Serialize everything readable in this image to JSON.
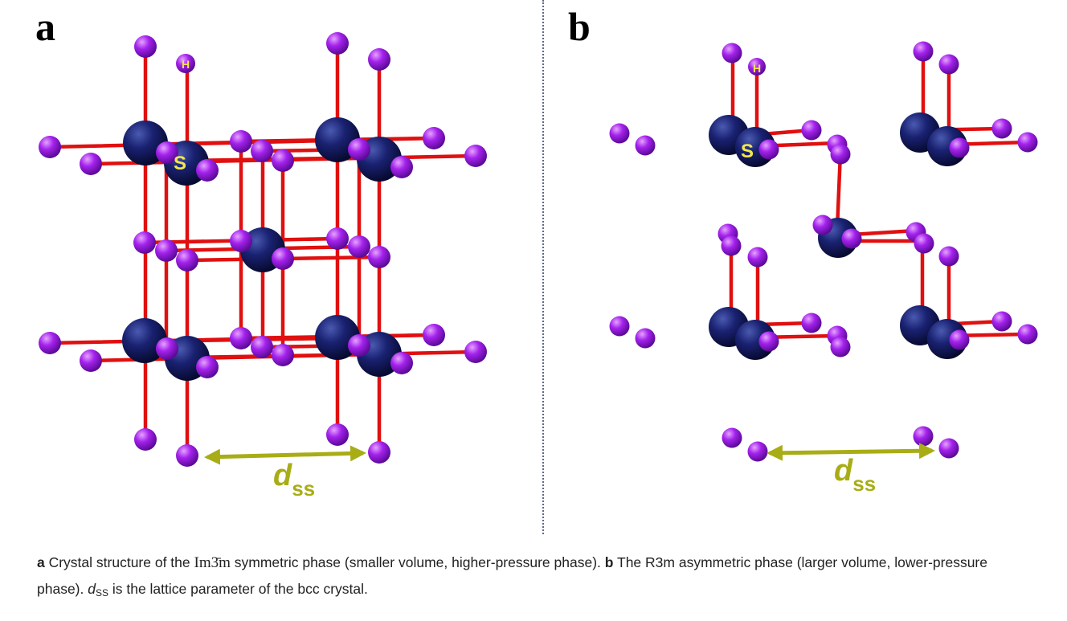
{
  "figure": {
    "panel_a_label": "a",
    "panel_b_label": "b",
    "atom_label_h": "H",
    "atom_label_s": "S",
    "dim_label": {
      "main": "d",
      "sub": "ss"
    },
    "colors": {
      "sulfur_atom": "#141a5c",
      "hydrogen_atom": "#9b1de0",
      "bond": "#e01010",
      "dimension_arrow": "#a8ad16",
      "atom_text": "#f2e84a"
    }
  },
  "caption": {
    "a_tag": "a",
    "a_text_1": " Crystal structure of the ",
    "a_symmetry": "Im3̄m",
    "a_text_2": " symmetric phase (smaller volume, higher-pressure phase). ",
    "b_tag": "b",
    "b_text": " The R3m asymmetric phase (larger volume, lower-pressure phase). ",
    "dss_main": "d",
    "dss_sub": "SS",
    "end_text": " is the lattice parameter of the bcc crystal."
  }
}
